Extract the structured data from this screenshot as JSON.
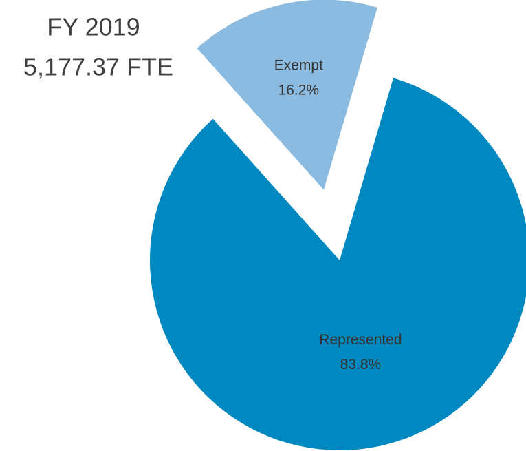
{
  "chart_data": {
    "type": "pie",
    "title": "FY 2019",
    "subtitle": "5,177.37 FTE",
    "categories": [
      "Exempt",
      "Represented"
    ],
    "values": [
      16.2,
      83.8
    ],
    "value_labels": [
      "16.2%",
      "83.8%"
    ],
    "colors": [
      "#8bbbe0",
      "#0088c0"
    ]
  }
}
